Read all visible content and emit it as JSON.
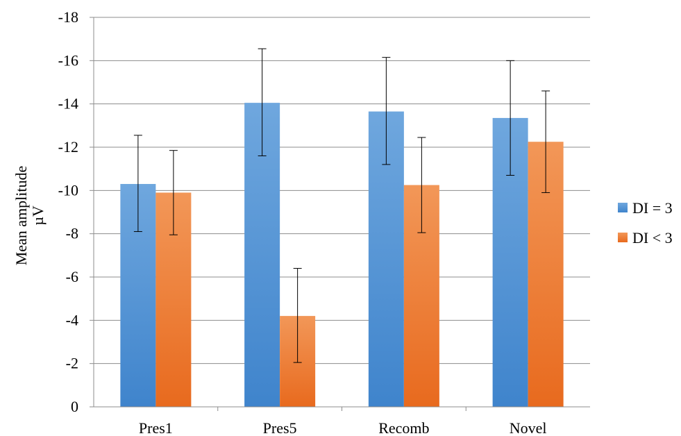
{
  "chart_data": {
    "type": "bar",
    "categories": [
      "Pres1",
      "Pres5",
      "Recomb",
      "Novel"
    ],
    "series": [
      {
        "name": "DI = 3",
        "color": "#4f8fd6",
        "color_top": "#6fa7de",
        "color_bottom": "#3f84cc",
        "values": [
          -10.3,
          -14.05,
          -13.65,
          -13.35
        ],
        "error_low": [
          -8.1,
          -11.6,
          -11.2,
          -10.7
        ],
        "error_high": [
          -12.55,
          -16.55,
          -16.15,
          -16.0
        ]
      },
      {
        "name": "DI < 3",
        "color": "#f07e34",
        "color_top": "#f29758",
        "color_bottom": "#e86a1e",
        "values": [
          -9.9,
          -4.2,
          -10.25,
          -12.25
        ],
        "error_low": [
          -7.95,
          -2.05,
          -8.05,
          -9.9
        ],
        "error_high": [
          -11.85,
          -6.4,
          -12.45,
          -14.6
        ]
      }
    ],
    "ylabel": "Mean amplitude µV",
    "ylabel_lines": [
      "Mean amplitude",
      "µV"
    ],
    "ylim": [
      0,
      -18
    ],
    "yticks": [
      0,
      -2,
      -4,
      -6,
      -8,
      -10,
      -12,
      -14,
      -16,
      -18
    ],
    "grid": true,
    "legend_position": "right"
  }
}
